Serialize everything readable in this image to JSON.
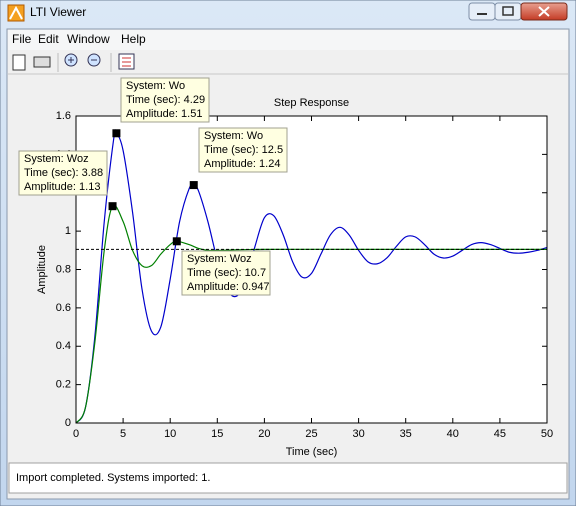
{
  "window": {
    "title": "LTI Viewer"
  },
  "menu": [
    "File",
    "Edit",
    "Window",
    "Help"
  ],
  "status": "Import completed. Systems imported: 1.",
  "chart_data": {
    "type": "line",
    "title": "Step Response",
    "xlabel": "Time (sec)",
    "ylabel": "Amplitude",
    "xlim": [
      0,
      50
    ],
    "ylim": [
      0,
      1.6
    ],
    "xticks": [
      0,
      5,
      10,
      15,
      20,
      25,
      30,
      35,
      40,
      45,
      50
    ],
    "yticks": [
      0,
      0.2,
      0.4,
      0.6,
      0.8,
      1,
      1.2,
      1.4,
      1.6
    ],
    "grid": false,
    "series": [
      {
        "name": "Wo",
        "color": "#0000cc",
        "x": [
          0,
          1,
          2,
          3,
          4,
          4.29,
          5,
          6,
          7,
          8,
          9,
          10,
          11,
          12,
          12.5,
          13,
          14,
          15,
          16,
          17,
          18,
          19,
          20,
          21,
          22,
          23,
          24,
          25,
          26,
          27,
          28,
          29,
          30,
          31,
          32,
          33,
          34,
          35,
          36,
          37,
          38,
          39,
          40,
          41,
          42,
          43,
          44,
          45,
          46,
          47,
          48,
          49,
          50
        ],
        "values": [
          0,
          0.08,
          0.45,
          1.05,
          1.48,
          1.51,
          1.42,
          1.1,
          0.7,
          0.48,
          0.5,
          0.75,
          1.05,
          1.22,
          1.24,
          1.21,
          1.05,
          0.85,
          0.7,
          0.66,
          0.74,
          0.92,
          1.07,
          1.08,
          0.98,
          0.84,
          0.76,
          0.78,
          0.88,
          0.98,
          1.02,
          0.98,
          0.9,
          0.84,
          0.83,
          0.86,
          0.92,
          0.97,
          0.97,
          0.93,
          0.88,
          0.86,
          0.87,
          0.9,
          0.93,
          0.94,
          0.93,
          0.91,
          0.89,
          0.885,
          0.89,
          0.9,
          0.915
        ]
      },
      {
        "name": "Woz",
        "color": "#008000",
        "x": [
          0,
          1,
          2,
          3,
          3.88,
          5,
          6,
          7,
          8,
          9,
          10,
          10.7,
          12,
          13,
          14,
          15,
          20,
          30,
          40,
          50
        ],
        "values": [
          0,
          0.08,
          0.42,
          0.9,
          1.13,
          1.05,
          0.9,
          0.82,
          0.82,
          0.88,
          0.93,
          0.947,
          0.93,
          0.91,
          0.9,
          0.9,
          0.905,
          0.905,
          0.905,
          0.905
        ]
      }
    ],
    "steady_state": {
      "value": 0.905,
      "color": "#000000"
    },
    "datatips": [
      {
        "lines": [
          "System: Wo",
          "Time (sec): 4.29",
          "Amplitude: 1.51"
        ],
        "x": 4.29,
        "y": 1.51
      },
      {
        "lines": [
          "System: Woz",
          "Time (sec): 3.88",
          "Amplitude: 1.13"
        ],
        "x": 3.88,
        "y": 1.13
      },
      {
        "lines": [
          "System: Wo",
          "Time (sec): 12.5",
          "Amplitude: 1.24"
        ],
        "x": 12.5,
        "y": 1.24
      },
      {
        "lines": [
          "System: Woz",
          "Time (sec): 10.7",
          "Amplitude: 0.947"
        ],
        "x": 10.7,
        "y": 0.947
      }
    ]
  }
}
